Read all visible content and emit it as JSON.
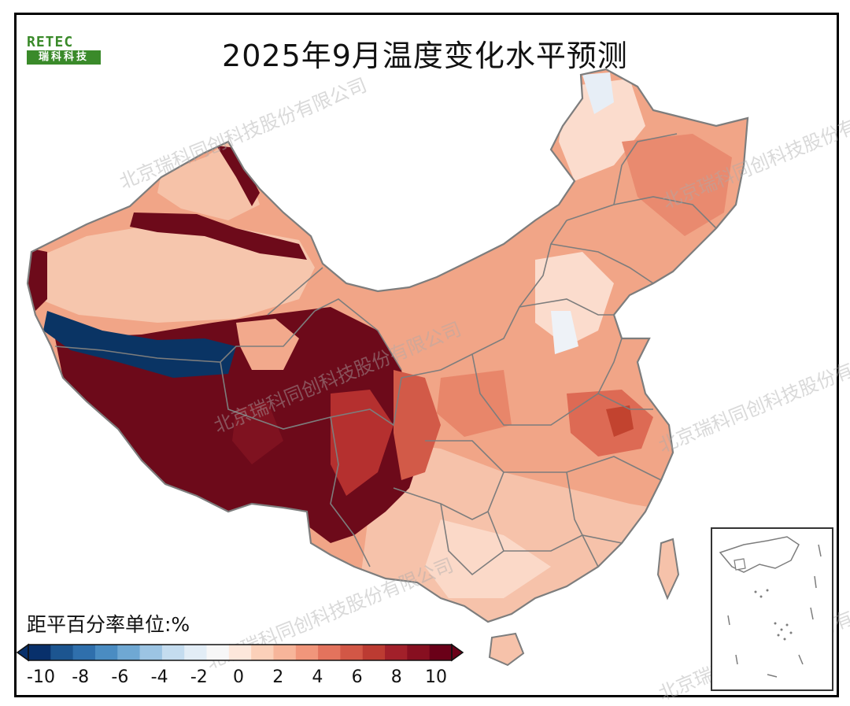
{
  "title": "2025年9月温度变化水平预测",
  "logo": {
    "mark": "RETEC",
    "name": "瑞科科技"
  },
  "legend": {
    "unit_label": "距平百分率单位:%",
    "tick_labels": [
      "-10",
      "-8",
      "-6",
      "-4",
      "-2",
      "0",
      "2",
      "4",
      "6",
      "8",
      "10"
    ],
    "colors": [
      "#08306b",
      "#1c5590",
      "#2f6fac",
      "#4a8cc2",
      "#6fa8d3",
      "#9cc4e3",
      "#c4dcef",
      "#e2edf6",
      "#f7f7f7",
      "#fde7db",
      "#fbd0b9",
      "#f7b59a",
      "#f1967b",
      "#e3735d",
      "#d25746",
      "#bc3b32",
      "#a2202a",
      "#870f20",
      "#6a0018"
    ]
  },
  "watermark": "北京瑞科同创科技股份有限公司",
  "colors": {
    "deep_red": "#6d0a1a",
    "red": "#c6453a",
    "salmon": "#e98e72",
    "light_salmon": "#f5bca3",
    "pale": "#fbe2d5",
    "deep_blue": "#0a3464",
    "border": "#7d7d7d"
  }
}
